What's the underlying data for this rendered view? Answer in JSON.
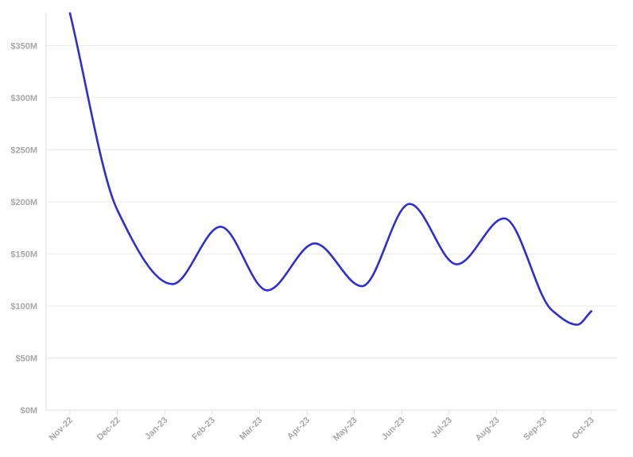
{
  "chart_data": {
    "type": "line",
    "title": "",
    "xlabel": "",
    "ylabel": "",
    "categories": [
      "Nov-22",
      "Dec-22",
      "Jan-23",
      "Feb-23",
      "Mar-23",
      "Apr-23",
      "May-23",
      "Jun-23",
      "Jul-23",
      "Aug-23",
      "Sep-23",
      "Oct-23"
    ],
    "y_ticks": [
      0,
      50,
      100,
      150,
      200,
      250,
      300,
      350
    ],
    "y_tick_labels": [
      "$0M",
      "$50M",
      "$100M",
      "$150M",
      "$200M",
      "$250M",
      "$300M",
      "$350M"
    ],
    "ylim": [
      0,
      380
    ],
    "y_unit": "$M",
    "grid": "horizontal",
    "legend": "none",
    "smooth": true,
    "series": [
      {
        "color": "#2f2fcc",
        "points": [
          {
            "x": "Nov-22",
            "y": 381
          },
          {
            "x": "Dec-22",
            "y": 192
          },
          {
            "x": "2023-01-06",
            "y": 121
          },
          {
            "x": "2023-02-06",
            "y": 176
          },
          {
            "x": "2023-03-06",
            "y": 115
          },
          {
            "x": "2023-04-06",
            "y": 160
          },
          {
            "x": "2023-05-06",
            "y": 119
          },
          {
            "x": "2023-06-06",
            "y": 198
          },
          {
            "x": "2023-07-06",
            "y": 140
          },
          {
            "x": "2023-08-06",
            "y": 184
          },
          {
            "x": "2023-09-06",
            "y": 96
          },
          {
            "x": "2023-09-22",
            "y": 82
          },
          {
            "x": "Oct-23",
            "y": 95
          }
        ]
      }
    ]
  }
}
